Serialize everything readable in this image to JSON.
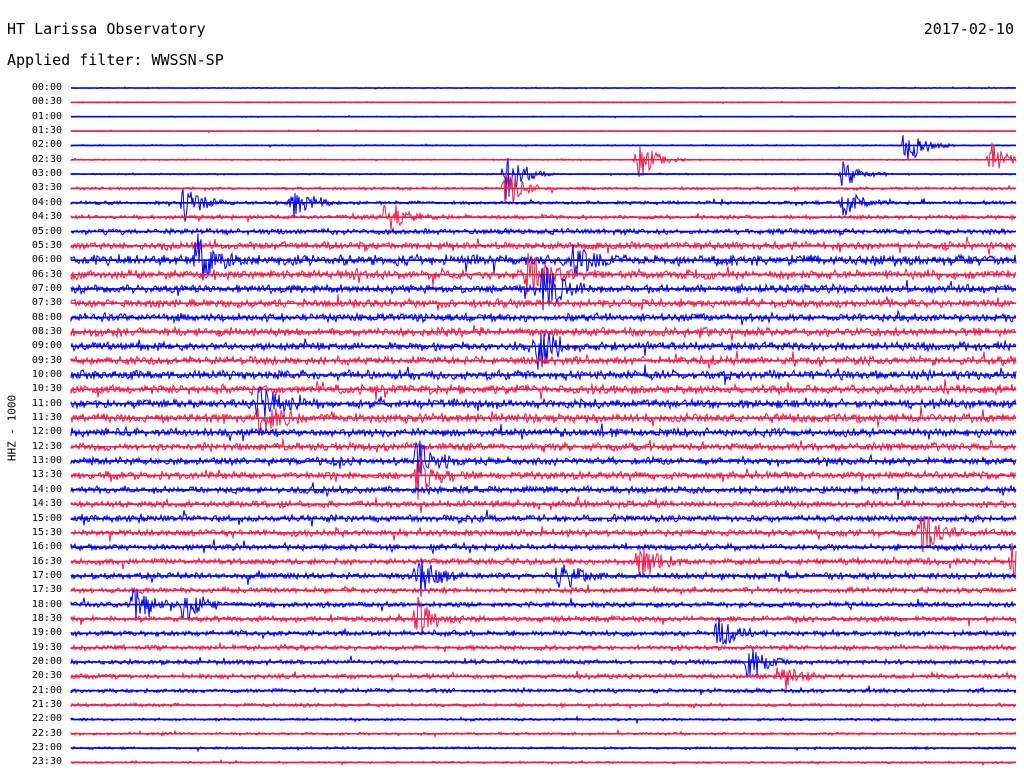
{
  "header": {
    "station": "HT Larissa Observatory",
    "date": "2017-02-10",
    "filter": "Applied filter: WWSSN-SP"
  },
  "colors": {
    "trace_a": "#0000ee",
    "trace_b": "#ee1e4a",
    "background": "#ffffff",
    "text": "#000000"
  },
  "chart_data": {
    "type": "line",
    "subtype": "helicorder",
    "ylabel": "HHZ - 1000",
    "row_labels": [
      "00:00",
      "00:30",
      "01:00",
      "01:30",
      "02:00",
      "02:30",
      "03:00",
      "03:30",
      "04:00",
      "04:30",
      "05:00",
      "05:30",
      "06:00",
      "06:30",
      "07:00",
      "07:30",
      "08:00",
      "08:30",
      "09:00",
      "09:30",
      "10:00",
      "10:30",
      "11:00",
      "11:30",
      "12:00",
      "12:30",
      "13:00",
      "13:30",
      "14:00",
      "14:30",
      "15:00",
      "15:30",
      "16:00",
      "16:30",
      "17:00",
      "17:30",
      "18:00",
      "18:30",
      "19:00",
      "19:30",
      "20:00",
      "20:30",
      "21:00",
      "21:30",
      "22:00",
      "22:30",
      "23:00",
      "23:30"
    ],
    "row_colors": [
      "blue",
      "red"
    ],
    "minutes_per_row": 30,
    "noise_level": [
      0.08,
      0.08,
      0.08,
      0.08,
      0.1,
      0.1,
      0.12,
      0.2,
      0.25,
      0.3,
      0.4,
      0.55,
      0.75,
      0.65,
      0.6,
      0.6,
      0.6,
      0.6,
      0.6,
      0.6,
      0.65,
      0.65,
      0.65,
      0.65,
      0.6,
      0.55,
      0.55,
      0.55,
      0.5,
      0.5,
      0.5,
      0.5,
      0.45,
      0.45,
      0.45,
      0.4,
      0.4,
      0.4,
      0.4,
      0.35,
      0.35,
      0.35,
      0.3,
      0.25,
      0.2,
      0.2,
      0.18,
      0.15
    ],
    "events": [
      {
        "row": 4,
        "time_min": 26.5,
        "amp": 1.6
      },
      {
        "row": 5,
        "time_min": 18.0,
        "amp": 1.4
      },
      {
        "row": 5,
        "time_min": 29.2,
        "amp": 1.2
      },
      {
        "row": 6,
        "time_min": 24.5,
        "amp": 1.0
      },
      {
        "row": 6,
        "time_min": 13.8,
        "amp": 1.8
      },
      {
        "row": 7,
        "time_min": 13.8,
        "amp": 1.4
      },
      {
        "row": 8,
        "time_min": 3.6,
        "amp": 1.3
      },
      {
        "row": 8,
        "time_min": 7.0,
        "amp": 1.0
      },
      {
        "row": 8,
        "time_min": 24.5,
        "amp": 1.1
      },
      {
        "row": 9,
        "time_min": 10.0,
        "amp": 1.1
      },
      {
        "row": 12,
        "time_min": 4.0,
        "amp": 1.5
      },
      {
        "row": 12,
        "time_min": 16.0,
        "amp": 1.2
      },
      {
        "row": 13,
        "time_min": 14.5,
        "amp": 1.6
      },
      {
        "row": 14,
        "time_min": 15.0,
        "amp": 2.0
      },
      {
        "row": 18,
        "time_min": 14.8,
        "amp": 1.8
      },
      {
        "row": 22,
        "time_min": 6.0,
        "amp": 1.3
      },
      {
        "row": 23,
        "time_min": 6.0,
        "amp": 1.4
      },
      {
        "row": 26,
        "time_min": 11.0,
        "amp": 1.4
      },
      {
        "row": 27,
        "time_min": 11.0,
        "amp": 1.4
      },
      {
        "row": 31,
        "time_min": 27.0,
        "amp": 1.3
      },
      {
        "row": 33,
        "time_min": 18.0,
        "amp": 1.4
      },
      {
        "row": 33,
        "time_min": 29.9,
        "amp": 1.4
      },
      {
        "row": 34,
        "time_min": 11.0,
        "amp": 1.5
      },
      {
        "row": 34,
        "time_min": 15.5,
        "amp": 1.2
      },
      {
        "row": 36,
        "time_min": 2.0,
        "amp": 1.3
      },
      {
        "row": 36,
        "time_min": 3.6,
        "amp": 1.2
      },
      {
        "row": 37,
        "time_min": 11.0,
        "amp": 1.4
      },
      {
        "row": 38,
        "time_min": 20.5,
        "amp": 1.1
      },
      {
        "row": 40,
        "time_min": 21.5,
        "amp": 1.2
      },
      {
        "row": 41,
        "time_min": 22.5,
        "amp": 1.2
      }
    ]
  }
}
